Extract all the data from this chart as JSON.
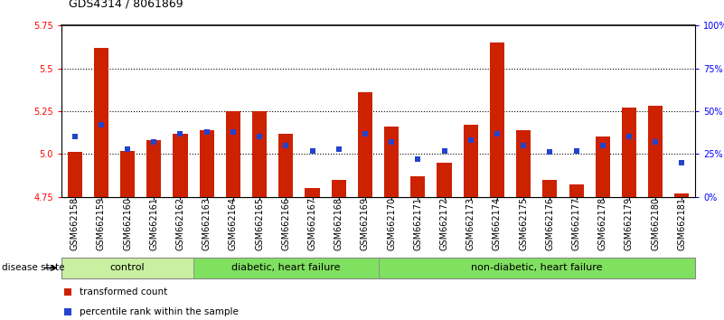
{
  "title": "GDS4314 / 8061869",
  "samples": [
    "GSM662158",
    "GSM662159",
    "GSM662160",
    "GSM662161",
    "GSM662162",
    "GSM662163",
    "GSM662164",
    "GSM662165",
    "GSM662166",
    "GSM662167",
    "GSM662168",
    "GSM662169",
    "GSM662170",
    "GSM662171",
    "GSM662172",
    "GSM662173",
    "GSM662174",
    "GSM662175",
    "GSM662176",
    "GSM662177",
    "GSM662178",
    "GSM662179",
    "GSM662180",
    "GSM662181"
  ],
  "red_values": [
    5.01,
    5.62,
    5.02,
    5.08,
    5.12,
    5.14,
    5.25,
    5.25,
    5.12,
    4.8,
    4.85,
    5.36,
    5.16,
    4.87,
    4.95,
    5.17,
    5.65,
    5.14,
    4.85,
    4.82,
    5.1,
    5.27,
    5.28,
    4.77
  ],
  "blue_values_pct": [
    35,
    42,
    28,
    32,
    37,
    38,
    38,
    35,
    30,
    27,
    28,
    37,
    32,
    22,
    27,
    33,
    37,
    30,
    26,
    27,
    30,
    35,
    32,
    20
  ],
  "ylim": [
    4.75,
    5.75
  ],
  "yticks_left": [
    4.75,
    5.0,
    5.25,
    5.5,
    5.75
  ],
  "yticks_right_pct": [
    0,
    25,
    50,
    75,
    100
  ],
  "group_configs": [
    {
      "start": 0,
      "end": 4,
      "label": "control",
      "color": "#c8f0a0"
    },
    {
      "start": 5,
      "end": 11,
      "label": "diabetic, heart failure",
      "color": "#80e060"
    },
    {
      "start": 12,
      "end": 23,
      "label": "non-diabetic, heart failure",
      "color": "#80e060"
    }
  ],
  "bar_color": "#cc2200",
  "blue_color": "#2244cc",
  "bar_width": 0.55,
  "base_value": 4.75,
  "background_color": "#ffffff",
  "plot_bg_color": "#ffffff",
  "title_fontsize": 9,
  "tick_fontsize": 7,
  "label_fontsize": 8
}
